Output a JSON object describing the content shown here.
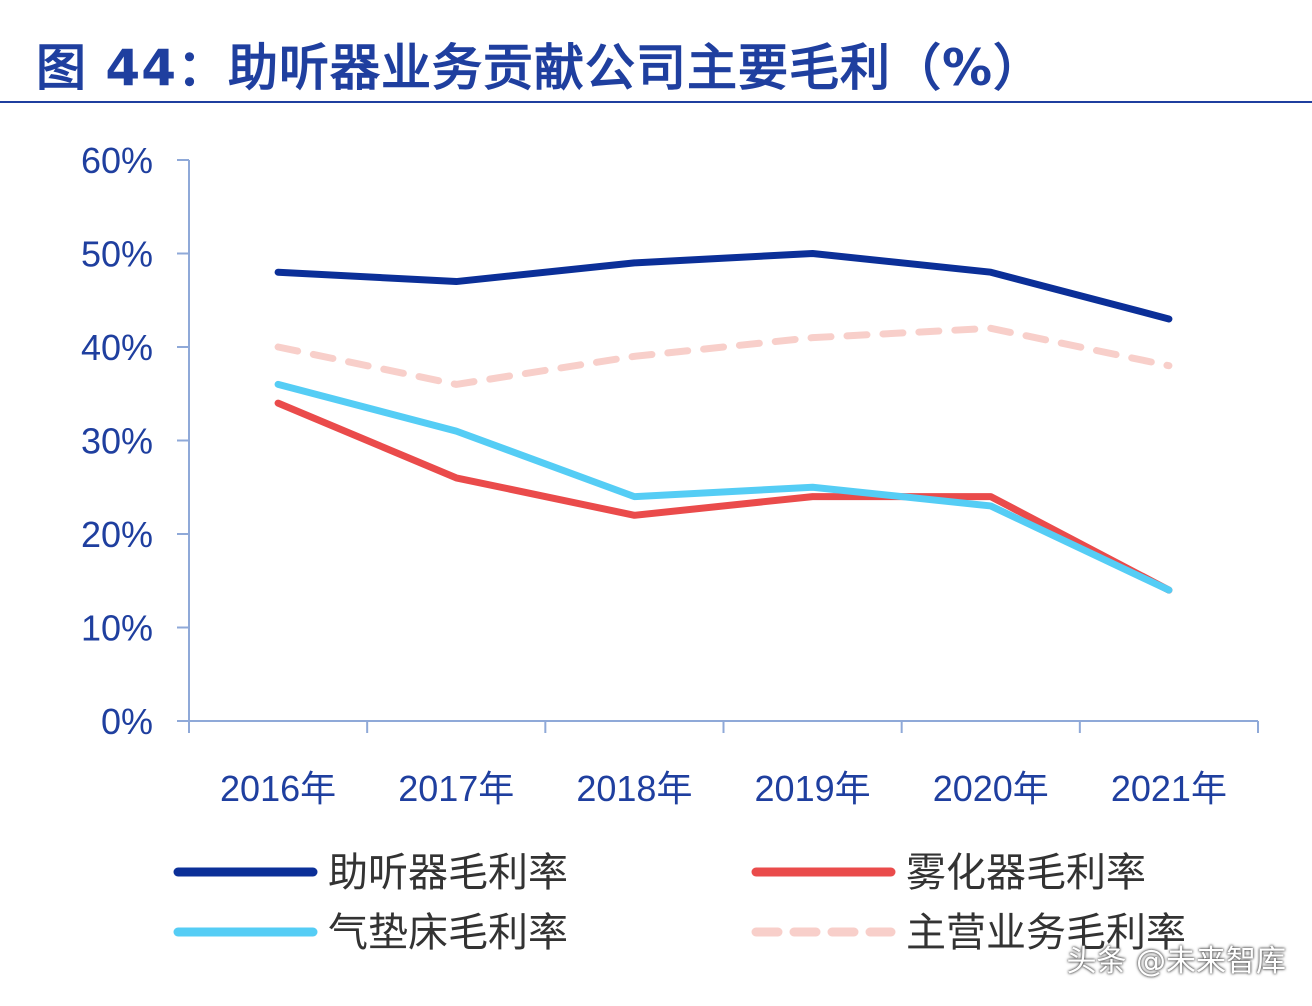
{
  "title": "图 44：助听器业务贡献公司主要毛利（%）",
  "watermark": "头条 @未来智库",
  "chart_data": {
    "type": "line",
    "title": "图 44：助听器业务贡献公司主要毛利（%）",
    "categories": [
      "2016年",
      "2017年",
      "2018年",
      "2019年",
      "2020年",
      "2021年"
    ],
    "ylim": [
      0,
      60
    ],
    "yticks": [
      "0%",
      "10%",
      "20%",
      "30%",
      "40%",
      "50%",
      "60%"
    ],
    "ytick_values": [
      0,
      10,
      20,
      30,
      40,
      50,
      60
    ],
    "grid": false,
    "legend_position": "bottom",
    "series": [
      {
        "name": "助听器毛利率",
        "values": [
          48,
          47,
          49,
          50,
          48,
          43
        ],
        "color": "#0b2f98",
        "dash": false
      },
      {
        "name": "雾化器毛利率",
        "values": [
          34,
          26,
          22,
          24,
          24,
          14
        ],
        "color": "#ea4b4b",
        "dash": false
      },
      {
        "name": "气垫床毛利率",
        "values": [
          36,
          31,
          24,
          25,
          23,
          14
        ],
        "color": "#55cdf5",
        "dash": false
      },
      {
        "name": "主营业务毛利率",
        "values": [
          40,
          36,
          39,
          41,
          42,
          38
        ],
        "color": "#f8cfca",
        "dash": true
      }
    ]
  }
}
